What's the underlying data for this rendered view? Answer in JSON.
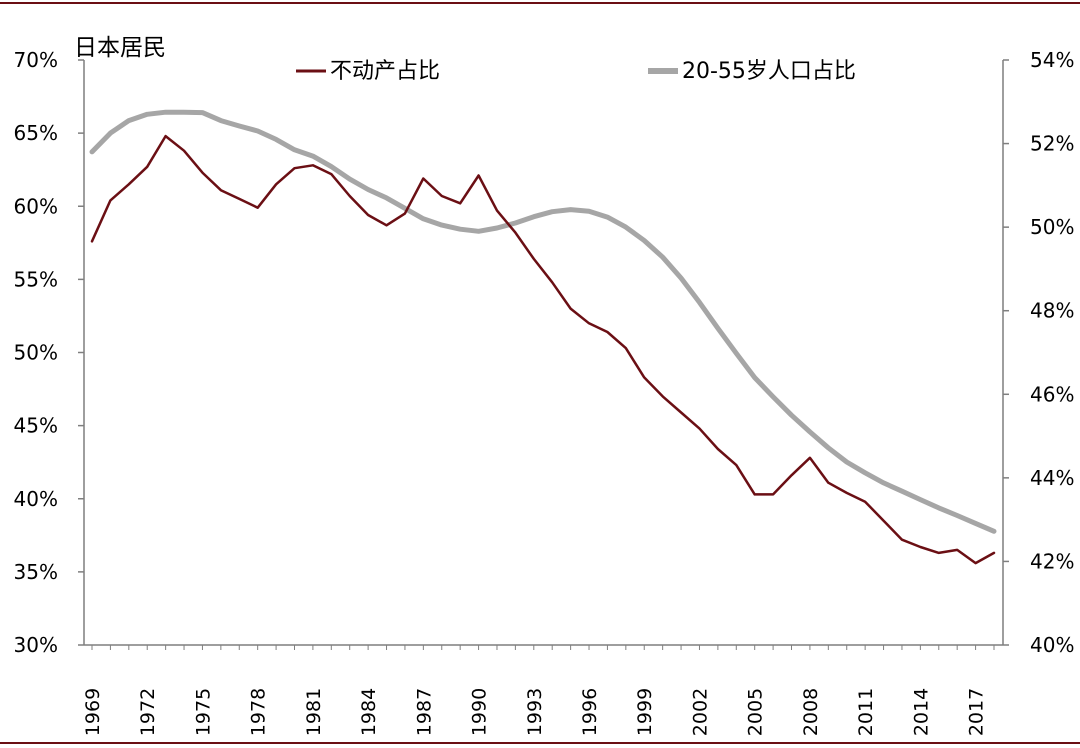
{
  "chart_data": {
    "type": "line",
    "title": "日本居民",
    "left_axis": {
      "ylim": [
        30,
        70
      ],
      "ticks": [
        "30%",
        "35%",
        "40%",
        "45%",
        "50%",
        "55%",
        "60%",
        "65%",
        "70%"
      ]
    },
    "right_axis": {
      "ylim": [
        40,
        54
      ],
      "ticks": [
        "40%",
        "42%",
        "44%",
        "46%",
        "48%",
        "50%",
        "52%",
        "54%"
      ]
    },
    "x_range": [
      1969,
      2018
    ],
    "x_ticks": [
      "1969",
      "1972",
      "1975",
      "1978",
      "1981",
      "1984",
      "1987",
      "1990",
      "1993",
      "1996",
      "1999",
      "2002",
      "2005",
      "2008",
      "2011",
      "2014",
      "2017"
    ],
    "grid": false,
    "legend": "top",
    "series": [
      {
        "name": "不动产占比",
        "axis": "left",
        "color": "#6b0f14",
        "x": [
          1969,
          1970,
          1971,
          1972,
          1973,
          1974,
          1975,
          1976,
          1977,
          1978,
          1979,
          1980,
          1981,
          1982,
          1983,
          1984,
          1985,
          1986,
          1987,
          1988,
          1989,
          1990,
          1991,
          1992,
          1993,
          1994,
          1995,
          1996,
          1997,
          1998,
          1999,
          2000,
          2001,
          2002,
          2003,
          2004,
          2005,
          2006,
          2007,
          2008,
          2009,
          2010,
          2011,
          2012,
          2013,
          2014,
          2015,
          2016,
          2017,
          2018
        ],
        "values": [
          57.6,
          60.4,
          61.5,
          62.7,
          64.8,
          63.8,
          62.3,
          61.1,
          60.5,
          59.9,
          61.5,
          62.6,
          62.8,
          62.2,
          60.7,
          59.4,
          58.7,
          59.5,
          61.9,
          60.7,
          60.2,
          62.1,
          59.7,
          58.2,
          56.4,
          54.8,
          53.0,
          52.0,
          51.4,
          50.3,
          48.3,
          47.0,
          45.9,
          44.8,
          43.4,
          42.3,
          40.3,
          40.3,
          41.6,
          42.8,
          41.1,
          40.4,
          39.8,
          38.5,
          37.2,
          36.7,
          36.3,
          36.5,
          35.6,
          36.3
        ]
      },
      {
        "name": "20-55岁人口占比",
        "axis": "right",
        "color": "#a6a6a6",
        "x": [
          1969,
          1970,
          1971,
          1972,
          1973,
          1974,
          1975,
          1976,
          1977,
          1978,
          1979,
          1980,
          1981,
          1982,
          1983,
          1984,
          1985,
          1986,
          1987,
          1988,
          1989,
          1990,
          1991,
          1992,
          1993,
          1994,
          1995,
          1996,
          1997,
          1998,
          1999,
          2000,
          2001,
          2002,
          2003,
          2004,
          2005,
          2006,
          2007,
          2008,
          2009,
          2010,
          2011,
          2012,
          2013,
          2014,
          2015,
          2016,
          2017,
          2018
        ],
        "values": [
          51.8,
          52.25,
          52.55,
          52.7,
          52.75,
          52.75,
          52.74,
          52.55,
          52.42,
          52.3,
          52.1,
          51.85,
          51.7,
          51.45,
          51.15,
          50.9,
          50.7,
          50.45,
          50.2,
          50.05,
          49.95,
          49.9,
          49.98,
          50.1,
          50.25,
          50.37,
          50.42,
          50.38,
          50.24,
          50.0,
          49.68,
          49.28,
          48.78,
          48.2,
          47.58,
          46.98,
          46.4,
          45.94,
          45.5,
          45.1,
          44.72,
          44.38,
          44.12,
          43.88,
          43.68,
          43.48,
          43.28,
          43.1,
          42.91,
          42.72
        ]
      }
    ]
  }
}
